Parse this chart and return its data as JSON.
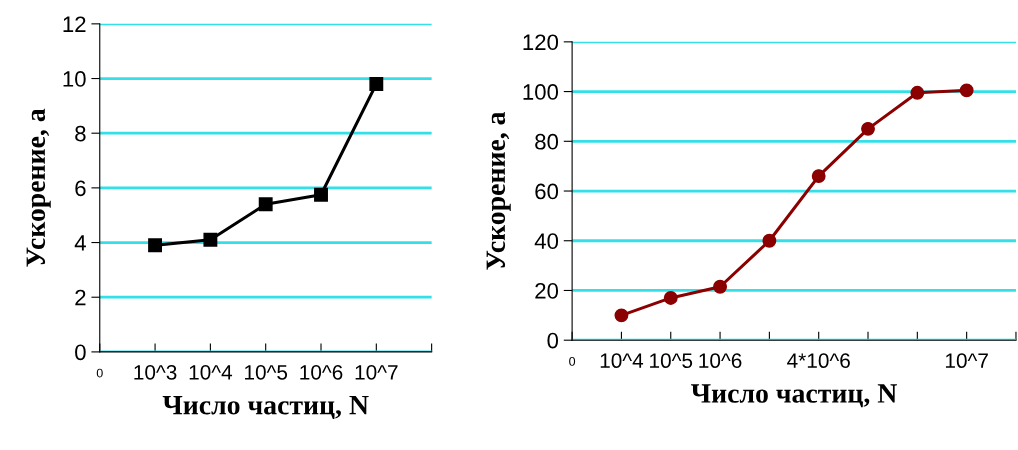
{
  "chart_data": [
    {
      "type": "line",
      "xlabel": "Число частиц, N",
      "ylabel": "Ускорение, а",
      "categories": [
        "0",
        "10^3",
        "10^4",
        "10^5",
        "10^6",
        "10^7",
        null
      ],
      "ylim": [
        0,
        12
      ],
      "yticks": [
        0,
        2,
        4,
        6,
        8,
        10,
        12
      ],
      "grid": "y",
      "marker": "square",
      "line_style": "solid",
      "legend": false,
      "series": [
        {
          "color": "#000000",
          "values": [
            null,
            3.9,
            4.1,
            5.4,
            5.75,
            9.8,
            null
          ]
        }
      ]
    },
    {
      "type": "line",
      "xlabel": "Число частиц, N",
      "ylabel": "Ускорение, а",
      "categories": [
        "0",
        "10^4",
        "10^5",
        "10^6",
        null,
        "4*10^6",
        null,
        null,
        "10^7",
        null
      ],
      "ylim": [
        0,
        120
      ],
      "yticks": [
        0,
        20,
        40,
        60,
        80,
        100,
        120
      ],
      "grid": "y",
      "marker": "circle",
      "line_style": "solid",
      "legend": false,
      "series": [
        {
          "color": "#8b0000",
          "values": [
            null,
            10,
            17,
            21.5,
            40,
            66,
            85,
            99.5,
            100.5,
            null
          ]
        }
      ]
    }
  ]
}
